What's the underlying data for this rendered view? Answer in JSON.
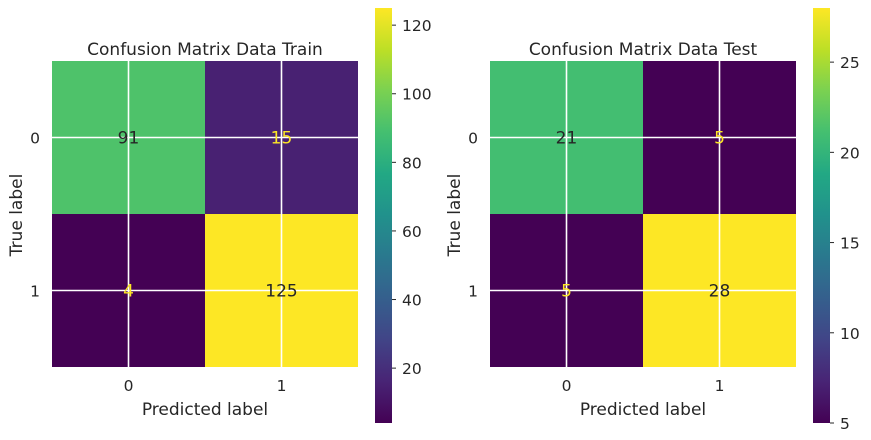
{
  "chart_data": [
    {
      "type": "heatmap",
      "title": "Confusion Matrix Data Train",
      "xlabel": "Predicted label",
      "ylabel": "True label",
      "x_tick_labels": [
        "0",
        "1"
      ],
      "y_tick_labels": [
        "0",
        "1"
      ],
      "matrix": [
        [
          91,
          15
        ],
        [
          4,
          125
        ]
      ],
      "colorbar": {
        "min": 4,
        "max": 125,
        "ticks": [
          20,
          40,
          60,
          80,
          100,
          120
        ]
      },
      "colormap": "viridis",
      "grid": true
    },
    {
      "type": "heatmap",
      "title": "Confusion Matrix Data Test",
      "xlabel": "Predicted label",
      "ylabel": "True label",
      "x_tick_labels": [
        "0",
        "1"
      ],
      "y_tick_labels": [
        "0",
        "1"
      ],
      "matrix": [
        [
          21,
          5
        ],
        [
          5,
          28
        ]
      ],
      "colorbar": {
        "min": 5,
        "max": 28,
        "ticks": [
          5,
          10,
          15,
          20,
          25
        ]
      },
      "colormap": "viridis",
      "grid": true
    }
  ],
  "colors": {
    "viridis_low": "#440154",
    "viridis_high": "#fde725",
    "grid_line": "#ffffff",
    "text_dark": "#262626"
  }
}
